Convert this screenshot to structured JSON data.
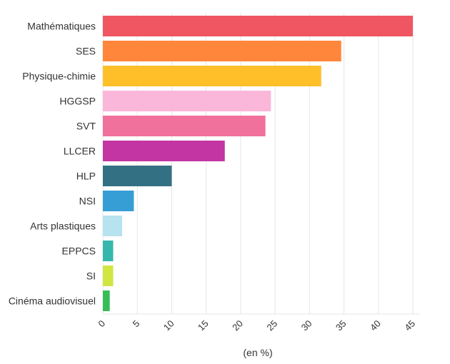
{
  "chart_data": {
    "type": "bar",
    "orientation": "horizontal",
    "title": "",
    "xlabel": "(en %)",
    "ylabel": "",
    "xlim": [
      0,
      45
    ],
    "xticks": [
      0,
      5,
      10,
      15,
      20,
      25,
      30,
      35,
      40,
      45
    ],
    "grid": true,
    "categories": [
      "Mathématiques",
      "SES",
      "Physique-chimie",
      "HGGSP",
      "SVT",
      "LLCER",
      "HLP",
      "NSI",
      "Arts plastiques",
      "EPPCS",
      "SI",
      "Cinéma audiovisuel"
    ],
    "values": [
      45,
      34.6,
      31.7,
      24.4,
      23.6,
      17.7,
      10,
      4.5,
      2.8,
      1.5,
      1.5,
      1.0
    ],
    "colors": [
      "#f0505d",
      "#ff8235",
      "#ffbd22",
      "#fbb5d8",
      "#ef6c98",
      "#c02ea0",
      "#2d6b80",
      "#2f9bd3",
      "#b5e1ef",
      "#2fb5a9",
      "#d0e43d",
      "#2fbb4f"
    ]
  }
}
